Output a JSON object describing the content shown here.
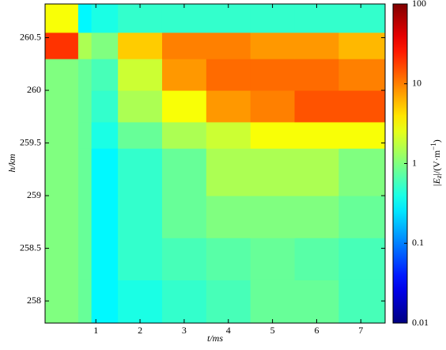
{
  "chart_data": {
    "type": "heatmap",
    "xlabel": "t/ms",
    "ylabel": "h/km",
    "colorbar_label": [
      "|E",
      "z",
      "|/(V·m",
      "−1",
      ")"
    ],
    "x_edges": [
      -0.15,
      0.6,
      0.9,
      1.5,
      2.5,
      3.5,
      4.5,
      5.5,
      6.5,
      7.55
    ],
    "y_edges": [
      257.79,
      258.2,
      258.6,
      259.0,
      259.45,
      259.7,
      260.0,
      260.3,
      260.55,
      260.82
    ],
    "z": [
      [
        1,
        0.8,
        0.3,
        0.4,
        0.5,
        0.6,
        0.8,
        0.8,
        0.6
      ],
      [
        1,
        0.8,
        0.3,
        0.5,
        0.6,
        0.7,
        0.8,
        0.7,
        0.6
      ],
      [
        1,
        0.8,
        0.3,
        0.5,
        0.8,
        1,
        1,
        1,
        0.8
      ],
      [
        1,
        0.8,
        0.3,
        0.5,
        0.8,
        1.5,
        1.5,
        1.5,
        1
      ],
      [
        1,
        0.8,
        0.4,
        0.8,
        1.5,
        2,
        3,
        3,
        3
      ],
      [
        1,
        0.8,
        0.5,
        1.5,
        3,
        8,
        10,
        15,
        15
      ],
      [
        1,
        0.8,
        0.6,
        2,
        8,
        12,
        12,
        12,
        10
      ],
      [
        20,
        1.5,
        1,
        5,
        10,
        10,
        8,
        8,
        6
      ],
      [
        3,
        0.3,
        0.4,
        0.5,
        0.5,
        0.5,
        0.5,
        0.5,
        0.5
      ]
    ],
    "xlim": [
      -0.15,
      7.55
    ],
    "xticks": [
      1,
      2,
      3,
      4,
      5,
      6,
      7
    ],
    "ylim": [
      257.79,
      260.82
    ],
    "yticks": [
      258,
      258.5,
      259,
      259.5,
      260,
      260.5
    ],
    "zlim": [
      0.01,
      100
    ],
    "zticks": [
      0.01,
      0.1,
      1,
      10,
      100
    ],
    "zscale": "log",
    "colormap": "jet"
  }
}
